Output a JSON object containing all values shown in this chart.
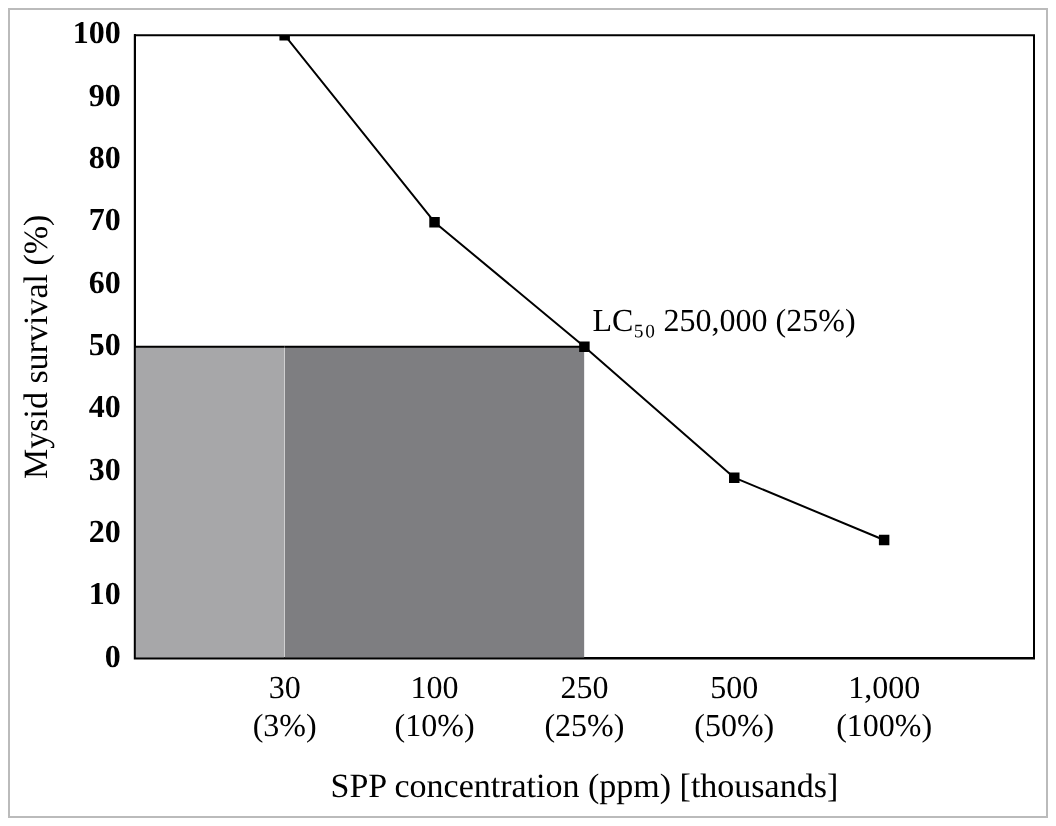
{
  "chart_data": {
    "type": "line",
    "xlabel": "SPP concentration (ppm) [thousands]",
    "ylabel": "Mysid survival (%)",
    "categories": [
      null,
      "30\n(3%)",
      "100\n(10%)",
      "250\n(25%)",
      "500\n(50%)",
      "1,000\n(100%)",
      null
    ],
    "series": [
      {
        "type": "area",
        "marker": "none",
        "color": "#a7a7a9",
        "values": [
          50,
          50,
          null,
          null,
          null,
          null,
          null
        ]
      },
      {
        "type": "area",
        "marker": "none",
        "color": "#7e7e81",
        "values": [
          null,
          50,
          50,
          50,
          null,
          null,
          null
        ]
      },
      {
        "color": "#000000",
        "values": [
          null,
          100,
          70,
          50,
          29,
          19,
          null
        ]
      }
    ],
    "ylim": [
      0,
      100
    ],
    "yticks": [
      0,
      10,
      20,
      30,
      40,
      50,
      60,
      70,
      80,
      90,
      100
    ],
    "grid": false,
    "legend": false,
    "marker": "square",
    "line_style": "solid",
    "annotations": [
      {
        "text": "LC₅₀ 250,000 (25%)",
        "x": "250\n(25%)",
        "y": 50
      }
    ]
  }
}
